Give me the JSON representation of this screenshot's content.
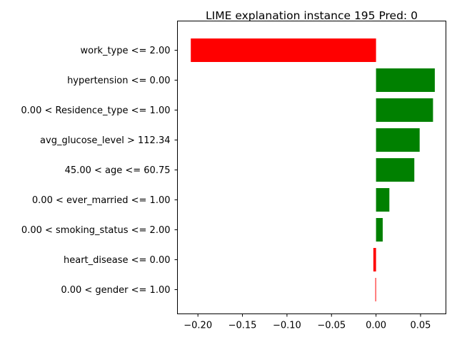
{
  "chart_data": {
    "type": "bar",
    "orientation": "horizontal",
    "title": "LIME explanation instance 195 Pred: 0",
    "xlabel": "",
    "ylabel": "",
    "xlim": [
      -0.223,
      0.0785
    ],
    "xticks": [
      -0.2,
      -0.15,
      -0.1,
      -0.05,
      0.0,
      0.05
    ],
    "xtick_labels": [
      "−0.20",
      "−0.15",
      "−0.10",
      "−0.05",
      "0.00",
      "0.05"
    ],
    "grid": false,
    "legend": "none",
    "categories": [
      "work_type <= 2.00",
      "hypertension <= 0.00",
      "0.00 < Residence_type <= 1.00",
      "avg_glucose_level > 112.34",
      "45.00 < age <= 60.75",
      "0.00 < ever_married <= 1.00",
      "0.00 < smoking_status <= 2.00",
      "heart_disease <= 0.00",
      "0.00 < gender <= 1.00"
    ],
    "values": [
      -0.208,
      0.066,
      0.064,
      0.049,
      0.043,
      0.015,
      0.0075,
      -0.003,
      -0.0008
    ],
    "colors": {
      "positive": "#008000",
      "negative": "#ff0000"
    }
  }
}
